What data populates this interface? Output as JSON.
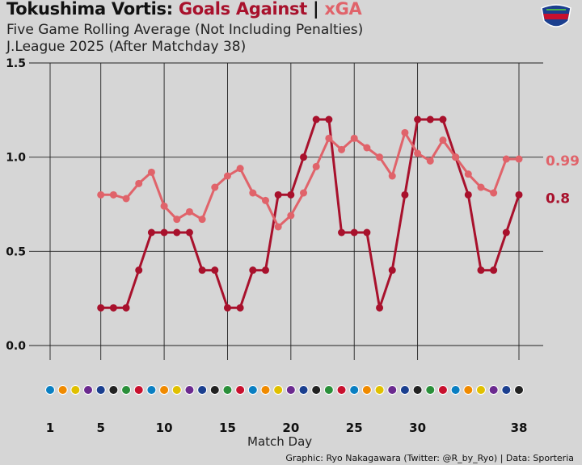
{
  "header": {
    "team": "Tokushima Vortis:",
    "goals_against": "Goals Against",
    "separator": "|",
    "xga": "xGA",
    "subtitle_1": "Five Game Rolling Average (Not Including Penalties)",
    "subtitle_2": "J.League 2025 (After Matchday 38)"
  },
  "footer": {
    "credit": "Graphic: Ryo Nakagawara (Twitter: @R_by_Ryo) | Data: Sporteria"
  },
  "colors": {
    "goals_against": "#a8112c",
    "xga": "#e0636a",
    "background": "#d6d6d6",
    "grid": "#222222"
  },
  "chart_data": {
    "type": "line",
    "xlabel": "Match Day",
    "ylabel": "",
    "xlim": [
      1,
      38
    ],
    "ylim": [
      0,
      1.5
    ],
    "y_ticks": [
      "0.0",
      "0.5",
      "1.0",
      "1.5"
    ],
    "x_ticks": [
      "1",
      "5",
      "10",
      "15",
      "20",
      "25",
      "30",
      "38"
    ],
    "x_tick_values": [
      1,
      5,
      10,
      15,
      20,
      25,
      30,
      38
    ],
    "grid": true,
    "opponent_logos": "row of opponent club crests along the x axis",
    "series": [
      {
        "name": "Goals Against",
        "color": "#a8112c",
        "x": [
          5,
          6,
          7,
          8,
          9,
          10,
          11,
          12,
          13,
          14,
          15,
          16,
          17,
          18,
          19,
          20,
          21,
          22,
          23,
          24,
          25,
          26,
          27,
          28,
          29,
          30,
          31,
          32,
          33,
          34,
          35,
          36,
          37,
          38
        ],
        "values": [
          0.2,
          0.2,
          0.2,
          0.4,
          0.6,
          0.6,
          0.6,
          0.6,
          0.4,
          0.4,
          0.2,
          0.2,
          0.4,
          0.4,
          0.8,
          0.8,
          1.0,
          1.2,
          1.2,
          0.6,
          0.6,
          0.6,
          0.2,
          0.4,
          0.8,
          1.2,
          1.2,
          1.2,
          1.0,
          0.8,
          0.4,
          0.4,
          0.6,
          0.8
        ],
        "end_label": "0.8"
      },
      {
        "name": "xGA",
        "color": "#e0636a",
        "x": [
          5,
          6,
          7,
          8,
          9,
          10,
          11,
          12,
          13,
          14,
          15,
          16,
          17,
          18,
          19,
          20,
          21,
          22,
          23,
          24,
          25,
          26,
          27,
          28,
          29,
          30,
          31,
          32,
          33,
          34,
          35,
          36,
          37,
          38
        ],
        "values": [
          0.8,
          0.8,
          0.78,
          0.86,
          0.92,
          0.74,
          0.67,
          0.71,
          0.67,
          0.84,
          0.9,
          0.94,
          0.81,
          0.77,
          0.63,
          0.69,
          0.81,
          0.95,
          1.1,
          1.04,
          1.1,
          1.05,
          1.0,
          0.9,
          1.13,
          1.02,
          0.98,
          1.09,
          1.0,
          0.91,
          0.84,
          0.81,
          0.99,
          0.99
        ],
        "end_label": "0.99"
      }
    ]
  }
}
